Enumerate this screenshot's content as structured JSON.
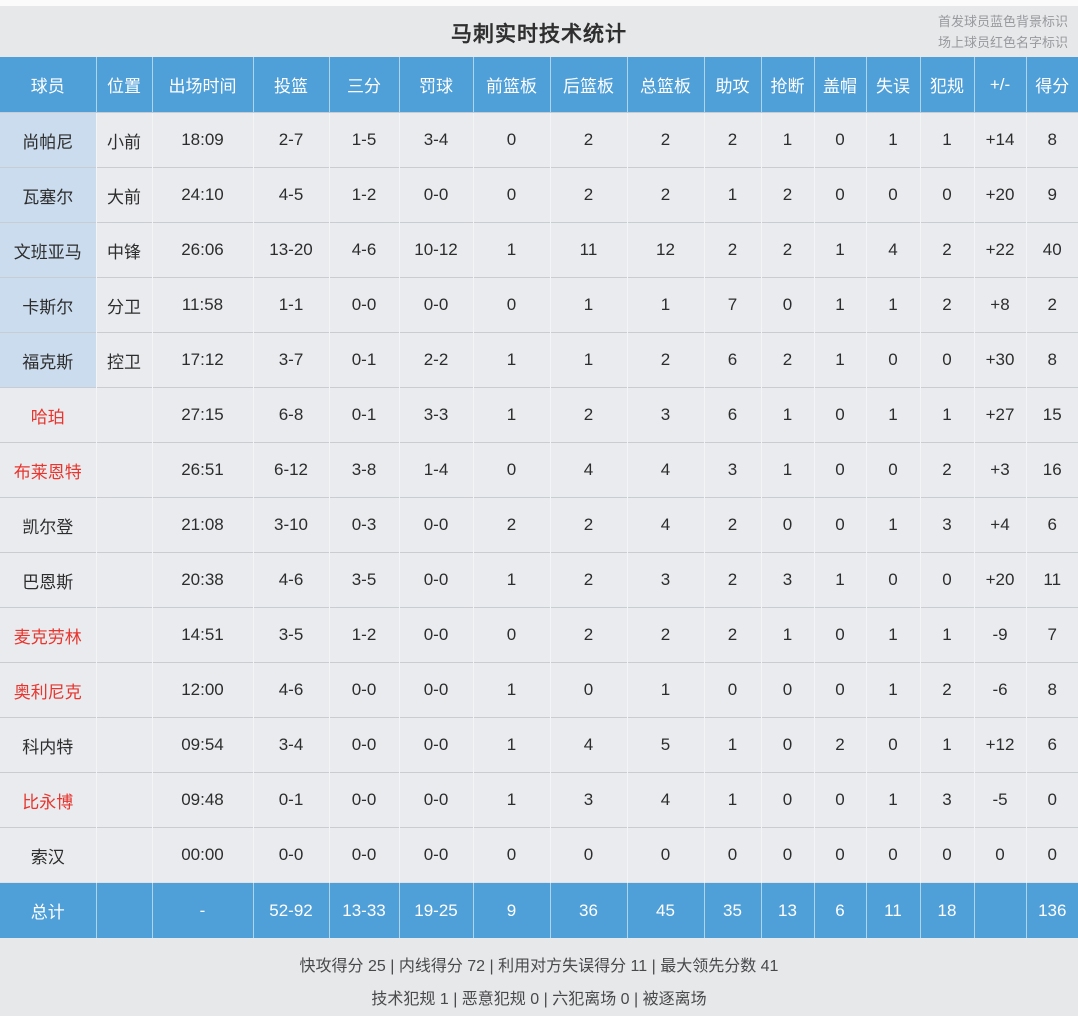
{
  "page": {
    "title": "马刺实时技术统计",
    "legend": {
      "starter_note": "首发球员蓝色背景标识",
      "oncourt_note": "场上球员红色名字标识"
    }
  },
  "colors": {
    "header_blue": "#4f9fd8",
    "starter_name_bg": "#cbdcee",
    "oncourt_name_red": "#e8352e",
    "cell_bg": "#e9ebee",
    "page_bg": "#e7e8ea"
  },
  "table": {
    "columns": [
      "球员",
      "位置",
      "出场时间",
      "投篮",
      "三分",
      "罚球",
      "前篮板",
      "后篮板",
      "总篮板",
      "助攻",
      "抢断",
      "盖帽",
      "失误",
      "犯规",
      "+/-",
      "得分"
    ],
    "rows": [
      {
        "name": "尚帕尼",
        "starter": true,
        "on_court": false,
        "cells": [
          "小前",
          "18:09",
          "2-7",
          "1-5",
          "3-4",
          "0",
          "2",
          "2",
          "2",
          "1",
          "0",
          "1",
          "1",
          "+14",
          "8"
        ]
      },
      {
        "name": "瓦塞尔",
        "starter": true,
        "on_court": false,
        "cells": [
          "大前",
          "24:10",
          "4-5",
          "1-2",
          "0-0",
          "0",
          "2",
          "2",
          "1",
          "2",
          "0",
          "0",
          "0",
          "+20",
          "9"
        ]
      },
      {
        "name": "文班亚马",
        "starter": true,
        "on_court": false,
        "cells": [
          "中锋",
          "26:06",
          "13-20",
          "4-6",
          "10-12",
          "1",
          "11",
          "12",
          "2",
          "2",
          "1",
          "4",
          "2",
          "+22",
          "40"
        ]
      },
      {
        "name": "卡斯尔",
        "starter": true,
        "on_court": false,
        "cells": [
          "分卫",
          "11:58",
          "1-1",
          "0-0",
          "0-0",
          "0",
          "1",
          "1",
          "7",
          "0",
          "1",
          "1",
          "2",
          "+8",
          "2"
        ]
      },
      {
        "name": "福克斯",
        "starter": true,
        "on_court": false,
        "cells": [
          "控卫",
          "17:12",
          "3-7",
          "0-1",
          "2-2",
          "1",
          "1",
          "2",
          "6",
          "2",
          "1",
          "0",
          "0",
          "+30",
          "8"
        ]
      },
      {
        "name": "哈珀",
        "starter": false,
        "on_court": true,
        "cells": [
          "",
          "27:15",
          "6-8",
          "0-1",
          "3-3",
          "1",
          "2",
          "3",
          "6",
          "1",
          "0",
          "1",
          "1",
          "+27",
          "15"
        ]
      },
      {
        "name": "布莱恩特",
        "starter": false,
        "on_court": true,
        "cells": [
          "",
          "26:51",
          "6-12",
          "3-8",
          "1-4",
          "0",
          "4",
          "4",
          "3",
          "1",
          "0",
          "0",
          "2",
          "+3",
          "16"
        ]
      },
      {
        "name": "凯尔登",
        "starter": false,
        "on_court": false,
        "cells": [
          "",
          "21:08",
          "3-10",
          "0-3",
          "0-0",
          "2",
          "2",
          "4",
          "2",
          "0",
          "0",
          "1",
          "3",
          "+4",
          "6"
        ]
      },
      {
        "name": "巴恩斯",
        "starter": false,
        "on_court": false,
        "cells": [
          "",
          "20:38",
          "4-6",
          "3-5",
          "0-0",
          "1",
          "2",
          "3",
          "2",
          "3",
          "1",
          "0",
          "0",
          "+20",
          "11"
        ]
      },
      {
        "name": "麦克劳林",
        "starter": false,
        "on_court": true,
        "cells": [
          "",
          "14:51",
          "3-5",
          "1-2",
          "0-0",
          "0",
          "2",
          "2",
          "2",
          "1",
          "0",
          "1",
          "1",
          "-9",
          "7"
        ]
      },
      {
        "name": "奥利尼克",
        "starter": false,
        "on_court": true,
        "cells": [
          "",
          "12:00",
          "4-6",
          "0-0",
          "0-0",
          "1",
          "0",
          "1",
          "0",
          "0",
          "0",
          "1",
          "2",
          "-6",
          "8"
        ]
      },
      {
        "name": "科内特",
        "starter": false,
        "on_court": false,
        "cells": [
          "",
          "09:54",
          "3-4",
          "0-0",
          "0-0",
          "1",
          "4",
          "5",
          "1",
          "0",
          "2",
          "0",
          "1",
          "+12",
          "6"
        ]
      },
      {
        "name": "比永博",
        "starter": false,
        "on_court": true,
        "cells": [
          "",
          "09:48",
          "0-1",
          "0-0",
          "0-0",
          "1",
          "3",
          "4",
          "1",
          "0",
          "0",
          "1",
          "3",
          "-5",
          "0"
        ]
      },
      {
        "name": "索汉",
        "starter": false,
        "on_court": false,
        "cells": [
          "",
          "00:00",
          "0-0",
          "0-0",
          "0-0",
          "0",
          "0",
          "0",
          "0",
          "0",
          "0",
          "0",
          "0",
          "0",
          "0"
        ]
      }
    ],
    "total": {
      "label": "总计",
      "cells": [
        "",
        "-",
        "52-92",
        "13-33",
        "19-25",
        "9",
        "36",
        "45",
        "35",
        "13",
        "6",
        "11",
        "18",
        "",
        "136"
      ]
    }
  },
  "footer": {
    "line1": "快攻得分 25 | 内线得分 72 | 利用对方失误得分 11 | 最大领先分数 41",
    "line2": "技术犯规 1 | 恶意犯规 0 | 六犯离场 0 | 被逐离场"
  }
}
